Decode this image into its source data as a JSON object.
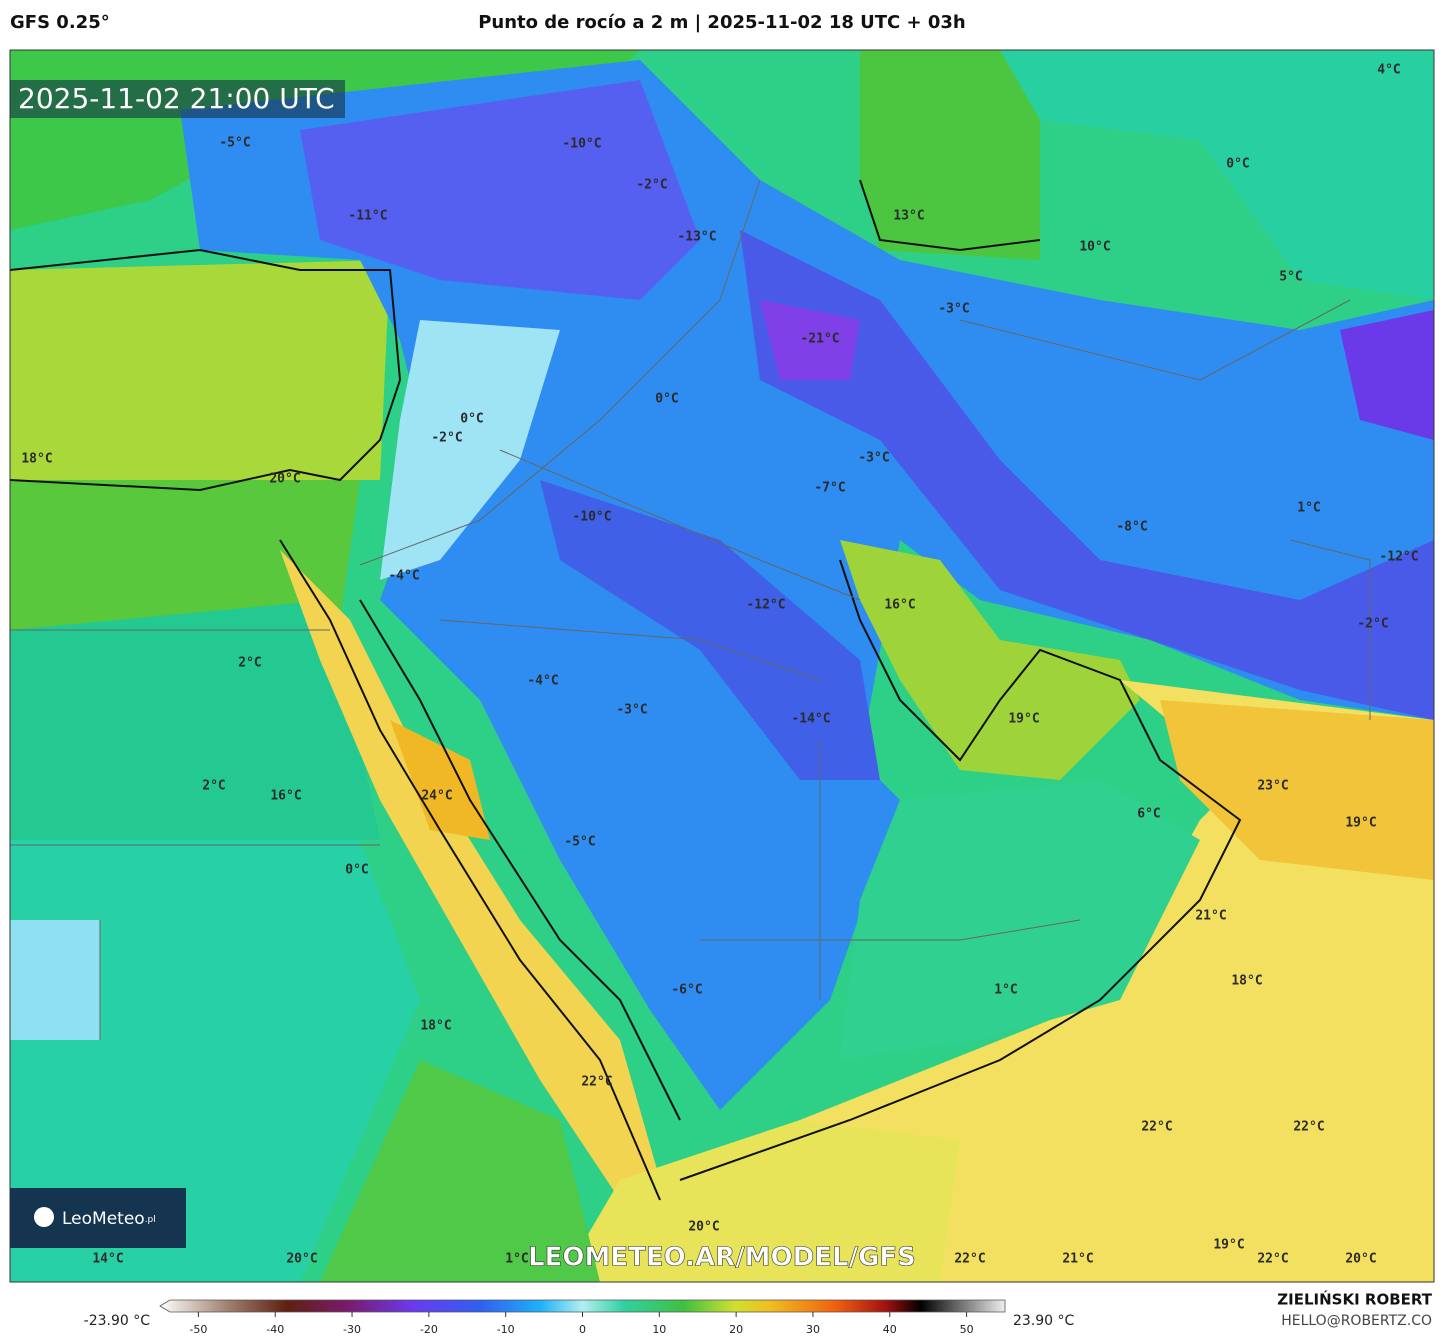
{
  "header": {
    "model": "GFS 0.25°",
    "title": "Punto de rocío a 2 m | 2025-11-02 18 UTC + 03h"
  },
  "timestamp": "2025-11-02 21:00 UTC",
  "labels": [
    "-5°C",
    "-10°C",
    "-2°C",
    "-11°C",
    "-13°C",
    "13°C",
    "0°C",
    "4°C",
    "10°C",
    "5°C",
    "-3°C",
    "-21°C",
    "0°C",
    "-2°C",
    "0°C",
    "18°C",
    "20°C",
    "-3°C",
    "-7°C",
    "1°C",
    "-8°C",
    "-10°C",
    "-12°C",
    "-4°C",
    "16°C",
    "-12°C",
    "-2°C",
    "2°C",
    "-4°C",
    "-3°C",
    "-14°C",
    "19°C",
    "23°C",
    "2°C",
    "16°C",
    "24°C",
    "6°C",
    "19°C",
    "-5°C",
    "0°C",
    "21°C",
    "18°C",
    "-6°C",
    "1°C",
    "18°C",
    "22°C",
    "22°C",
    "22°C",
    "20°C",
    "19°C",
    "14°C",
    "20°C",
    "1°C",
    "22°C",
    "21°C",
    "22°C",
    "20°C"
  ],
  "logo": {
    "name": "LeoMeteo",
    "suffix": ".pl"
  },
  "watermark": "LEOMETEO.AR/MODEL/GFS",
  "colorbar": {
    "min_label": "-23.90 °C",
    "max_label": "23.90 °C",
    "range": [
      -55,
      55
    ],
    "ticks": [
      -50,
      -40,
      -30,
      -20,
      -10,
      0,
      10,
      20,
      30,
      40,
      50
    ]
  },
  "footer": {
    "author": "ZIELIŃSKI ROBERT",
    "email": "HELLO@ROBERTZ.CO"
  }
}
